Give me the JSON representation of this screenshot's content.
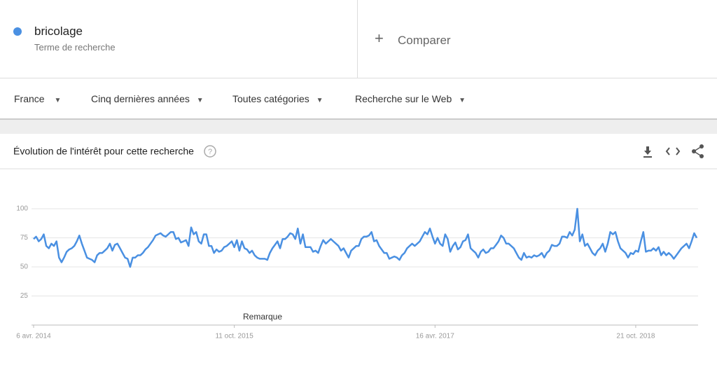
{
  "search": {
    "term_type": "Terme de recherche",
    "compare": "Comparer"
  },
  "filters": [
    "France",
    "Cinq dernières années",
    "Toutes catégories",
    "Recherche sur le Web"
  ],
  "chart_data": {
    "type": "line",
    "title": "Évolution de l'intérêt pour cette recherche",
    "annotation": "Remarque",
    "categories": [
      "6 avr. 2014",
      null,
      null,
      null,
      null,
      null,
      null,
      null,
      null,
      null,
      null,
      null,
      null,
      null,
      null,
      null,
      null,
      null,
      null,
      null,
      null,
      null,
      null,
      null,
      null,
      null,
      null,
      null,
      null,
      null,
      null,
      null,
      null,
      null,
      null,
      null,
      null,
      null,
      null,
      null,
      null,
      null,
      null,
      null,
      null,
      null,
      null,
      null,
      null,
      null,
      null,
      null,
      null,
      null,
      null,
      null,
      null,
      null,
      null,
      null,
      null,
      null,
      null,
      null,
      null,
      null,
      null,
      null,
      null,
      null,
      null,
      null,
      null,
      null,
      null,
      null,
      null,
      null,
      null,
      "11 oct. 2015",
      null,
      null,
      null,
      null,
      null,
      null,
      null,
      null,
      null,
      null,
      null,
      null,
      null,
      null,
      null,
      null,
      null,
      null,
      null,
      null,
      null,
      null,
      null,
      null,
      null,
      null,
      null,
      null,
      null,
      null,
      null,
      null,
      null,
      null,
      null,
      null,
      null,
      null,
      null,
      null,
      null,
      null,
      null,
      null,
      null,
      null,
      null,
      null,
      null,
      null,
      null,
      null,
      null,
      null,
      null,
      null,
      null,
      null,
      null,
      null,
      null,
      null,
      null,
      null,
      null,
      null,
      null,
      null,
      null,
      null,
      null,
      null,
      null,
      null,
      null,
      null,
      null,
      null,
      "16 avr. 2017",
      null,
      null,
      null,
      null,
      null,
      null,
      null,
      null,
      null,
      null,
      null,
      null,
      null,
      null,
      null,
      null,
      null,
      null,
      null,
      null,
      null,
      null,
      null,
      null,
      null,
      null,
      null,
      null,
      null,
      null,
      null,
      null,
      null,
      null,
      null,
      null,
      null,
      null,
      null,
      null,
      null,
      null,
      null,
      null,
      null,
      null,
      null,
      null,
      null,
      null,
      null,
      null,
      null,
      null,
      null,
      null,
      null,
      null,
      null,
      null,
      null,
      null,
      null,
      null,
      null,
      null,
      null,
      null,
      null,
      null,
      null,
      null,
      null,
      null,
      null,
      null,
      null,
      null,
      "21 oct. 2018",
      null,
      null,
      null,
      null,
      null,
      null,
      null,
      null,
      null,
      null,
      null,
      null,
      null,
      null,
      null,
      null,
      null,
      null,
      null,
      null,
      null,
      null,
      null,
      null
    ],
    "series": [
      {
        "name": "bricolage",
        "color": "#4a90e2",
        "values": [
          74,
          76,
          72,
          74,
          78,
          68,
          66,
          70,
          68,
          72,
          58,
          54,
          58,
          63,
          65,
          66,
          68,
          72,
          77,
          70,
          64,
          58,
          57,
          56,
          54,
          60,
          62,
          62,
          64,
          66,
          70,
          64,
          69,
          70,
          66,
          62,
          58,
          57,
          50,
          58,
          58,
          60,
          60,
          62,
          65,
          67,
          70,
          73,
          77,
          78,
          79,
          77,
          76,
          78,
          80,
          80,
          74,
          75,
          71,
          72,
          73,
          68,
          84,
          78,
          80,
          72,
          70,
          78,
          78,
          68,
          68,
          62,
          65,
          63,
          64,
          67,
          68,
          70,
          72,
          67,
          73,
          64,
          72,
          66,
          65,
          62,
          64,
          60,
          58,
          57,
          57,
          57,
          56,
          62,
          66,
          69,
          72,
          66,
          74,
          74,
          76,
          79,
          78,
          74,
          83,
          70,
          78,
          67,
          67,
          67,
          63,
          64,
          62,
          68,
          73,
          70,
          72,
          74,
          72,
          70,
          68,
          64,
          66,
          62,
          58,
          64,
          66,
          68,
          68,
          74,
          76,
          76,
          77,
          80,
          72,
          73,
          68,
          65,
          62,
          62,
          57,
          58,
          59,
          58,
          56,
          60,
          62,
          66,
          68,
          70,
          68,
          70,
          72,
          76,
          80,
          78,
          83,
          76,
          70,
          75,
          70,
          68,
          78,
          74,
          63,
          68,
          71,
          65,
          67,
          72,
          73,
          78,
          66,
          64,
          62,
          58,
          63,
          65,
          62,
          63,
          66,
          66,
          69,
          72,
          77,
          75,
          70,
          70,
          68,
          66,
          62,
          58,
          56,
          62,
          58,
          59,
          58,
          60,
          59,
          60,
          62,
          58,
          62,
          64,
          69,
          68,
          68,
          70,
          76,
          76,
          75,
          80,
          77,
          82,
          100,
          72,
          78,
          68,
          70,
          66,
          62,
          60,
          64,
          66,
          70,
          63,
          70,
          80,
          78,
          80,
          72,
          66,
          64,
          62,
          58,
          62,
          61,
          64,
          63,
          72,
          80,
          63,
          64,
          64,
          66,
          64,
          67,
          60,
          63,
          60,
          62,
          60,
          57,
          60,
          63,
          66,
          68,
          70,
          66,
          72,
          79,
          75
        ]
      }
    ],
    "ylim": [
      0,
      100
    ],
    "yticks": [
      25,
      50,
      75,
      100
    ],
    "grid": true
  }
}
